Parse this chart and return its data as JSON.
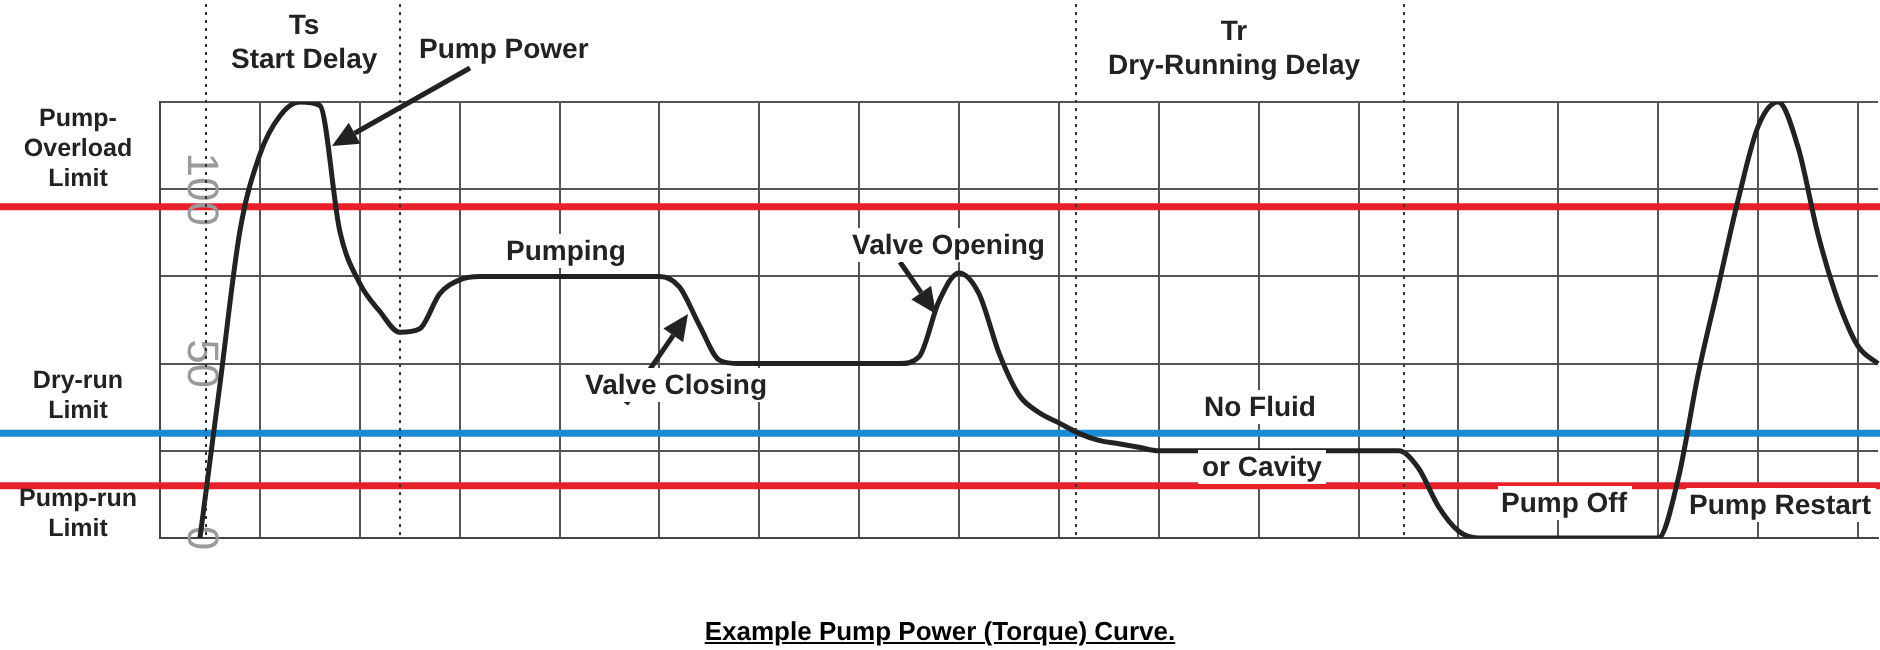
{
  "chart_data": {
    "type": "line",
    "title": "Example Pump Power (Torque) Curve.",
    "categories": [
      null,
      null,
      null,
      null,
      null,
      null,
      null,
      null,
      null,
      null,
      null,
      null,
      null,
      null,
      null,
      null,
      null,
      null,
      null,
      null,
      null,
      null,
      null,
      null,
      null,
      null,
      null,
      null,
      null,
      null,
      null,
      null,
      null,
      null,
      null,
      null,
      null,
      null,
      null,
      null,
      null,
      null,
      null,
      null,
      null,
      null,
      null,
      null,
      null,
      null,
      null,
      null,
      null,
      null,
      null,
      null,
      null,
      null,
      null,
      null,
      null,
      null,
      null,
      null,
      null,
      null,
      null,
      null,
      null,
      null,
      null,
      null,
      null,
      null,
      null,
      null,
      null,
      null,
      null,
      null,
      null,
      null,
      null,
      null,
      null,
      null,
      null
    ],
    "series": [
      {
        "color": "#222222",
        "values": [
          null,
          null,
          0,
          44,
          88,
          110,
          121,
          125,
          124,
          88,
          73,
          65,
          59,
          60,
          70,
          74,
          75,
          75,
          75,
          75,
          75,
          75,
          75,
          75,
          75,
          75,
          72,
          61,
          51,
          50,
          50,
          50,
          50,
          50,
          50,
          50,
          50,
          50,
          52,
          68,
          76,
          70,
          53,
          41,
          36,
          33,
          30,
          28,
          27,
          26,
          25,
          25,
          25,
          25,
          25,
          25,
          25,
          25,
          25,
          25,
          25,
          25,
          25,
          20,
          9,
          2,
          0,
          0,
          0,
          0,
          0,
          0,
          0,
          0,
          0,
          0,
          17,
          47,
          72,
          97,
          118,
          125,
          112,
          87,
          68,
          55,
          50
        ]
      }
    ],
    "ylim": [
      0,
      125
    ],
    "yticks": [
      0,
      {
        "value": 25,
        "label": null
      },
      50,
      {
        "value": 75,
        "label": null
      },
      100,
      {
        "value": 125,
        "label": null
      }
    ],
    "ref_lines": [
      {
        "axis": "y",
        "value": 95,
        "label": "Pump-Overload Limit",
        "color": "#e8202a"
      },
      {
        "axis": "y",
        "value": 30,
        "label": "Dry-run Limit",
        "color": "#1a8ad4"
      },
      {
        "axis": "y",
        "value": 15,
        "label": "Pump-run Limit",
        "color": "#e8202a"
      }
    ],
    "annotations": [
      "Ts\nStart Delay",
      "Pump Power",
      "Pumping",
      "Valve Closing",
      "Valve Opening",
      "Tr\nDry-Running Delay",
      "No Fluid",
      "or Cavity",
      "Pump Off",
      "Pump Restart"
    ],
    "grid": true,
    "legend": false,
    "tick_labels": "y",
    "marker": "none",
    "line_style": "solid"
  }
}
